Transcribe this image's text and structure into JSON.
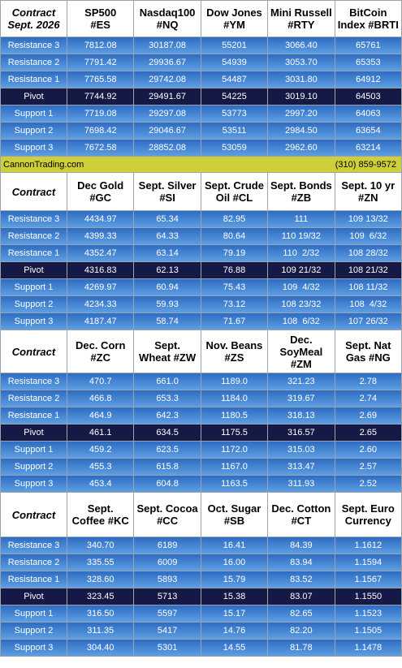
{
  "sections": [
    {
      "header": [
        "Contract\nSept. 2026",
        "SP500\n#ES",
        "Nasdaq100\n#NQ",
        "Dow Jones\n#YM",
        "Mini Russell\n#RTY",
        "BitCoin\nIndex #BRTI"
      ],
      "rows": [
        [
          "Resistance 3",
          "7812.08",
          "30187.08",
          "55201",
          "3066.40",
          "65761"
        ],
        [
          "Resistance 2",
          "7791.42",
          "29936.67",
          "54939",
          "3053.70",
          "65353"
        ],
        [
          "Resistance 1",
          "7765.58",
          "29742.08",
          "54487",
          "3031.80",
          "64912"
        ],
        [
          "Pivot",
          "7744.92",
          "29491.67",
          "54225",
          "3019.10",
          "64503"
        ],
        [
          "Support 1",
          "7719.08",
          "29297.08",
          "53773",
          "2997.20",
          "64063"
        ],
        [
          "Support 2",
          "7698.42",
          "29046.67",
          "53511",
          "2984.50",
          "63654"
        ],
        [
          "Support 3",
          "7672.58",
          "28852.08",
          "53059",
          "2962.60",
          "63214"
        ]
      ]
    },
    {
      "header": [
        "Contract",
        "Dec Gold\n#GC",
        "Sept. Silver\n#SI",
        "Sept. Crude\nOil #CL",
        "Sept. Bonds\n#ZB",
        "Sept. 10 yr\n#ZN"
      ],
      "rows": [
        [
          "Resistance 3",
          "4434.97",
          "65.34",
          "82.95",
          "111",
          "109 13/32"
        ],
        [
          "Resistance 2",
          "4399.33",
          "64.33",
          "80.64",
          "110 19/32",
          "109  6/32"
        ],
        [
          "Resistance 1",
          "4352.47",
          "63.14",
          "79.19",
          "110  2/32",
          "108 28/32"
        ],
        [
          "Pivot",
          "4316.83",
          "62.13",
          "76.88",
          "109 21/32",
          "108 21/32"
        ],
        [
          "Support 1",
          "4269.97",
          "60.94",
          "75.43",
          "109  4/32",
          "108 11/32"
        ],
        [
          "Support 2",
          "4234.33",
          "59.93",
          "73.12",
          "108 23/32",
          "108  4/32"
        ],
        [
          "Support 3",
          "4187.47",
          "58.74",
          "71.67",
          "108  6/32",
          "107 26/32"
        ]
      ]
    },
    {
      "header": [
        "Contract",
        "Dec. Corn\n#ZC",
        "Sept.\nWheat #ZW",
        "Nov. Beans\n#ZS",
        "Dec.\nSoyMeal\n#ZM",
        "Sept. Nat\nGas #NG"
      ],
      "rows": [
        [
          "Resistance 3",
          "470.7",
          "661.0",
          "1189.0",
          "321.23",
          "2.78"
        ],
        [
          "Resistance 2",
          "466.8",
          "653.3",
          "1184.0",
          "319.67",
          "2.74"
        ],
        [
          "Resistance 1",
          "464.9",
          "642.3",
          "1180.5",
          "318.13",
          "2.69"
        ],
        [
          "Pivot",
          "461.1",
          "634.5",
          "1175.5",
          "316.57",
          "2.65"
        ],
        [
          "Support 1",
          "459.2",
          "623.5",
          "1172.0",
          "315.03",
          "2.60"
        ],
        [
          "Support 2",
          "455.3",
          "615.8",
          "1167.0",
          "313.47",
          "2.57"
        ],
        [
          "Support 3",
          "453.4",
          "604.8",
          "1163.5",
          "311.93",
          "2.52"
        ]
      ]
    },
    {
      "header": [
        "Contract",
        "Sept.\nCoffee #KC",
        "Sept. Cocoa\n#CC",
        "Oct. Sugar\n#SB",
        "Dec. Cotton\n#CT",
        "Sept. Euro\nCurrency"
      ],
      "rows": [
        [
          "Resistance 3",
          "340.70",
          "6189",
          "16.41",
          "84.39",
          "1.1612"
        ],
        [
          "Resistance 2",
          "335.55",
          "6009",
          "16.00",
          "83.94",
          "1.1594"
        ],
        [
          "Resistance 1",
          "328.60",
          "5893",
          "15.79",
          "83.52",
          "1.1567"
        ],
        [
          "Pivot",
          "323.45",
          "5713",
          "15.38",
          "83.07",
          "1.1550"
        ],
        [
          "Support 1",
          "316.50",
          "5597",
          "15.17",
          "82.65",
          "1.1523"
        ],
        [
          "Support 2",
          "311.35",
          "5417",
          "14.76",
          "82.20",
          "1.1505"
        ],
        [
          "Support 3",
          "304.40",
          "5301",
          "14.55",
          "81.78",
          "1.1478"
        ]
      ]
    }
  ],
  "banner": {
    "left": "CannonTrading.com",
    "right": "(310) 859-9572"
  }
}
